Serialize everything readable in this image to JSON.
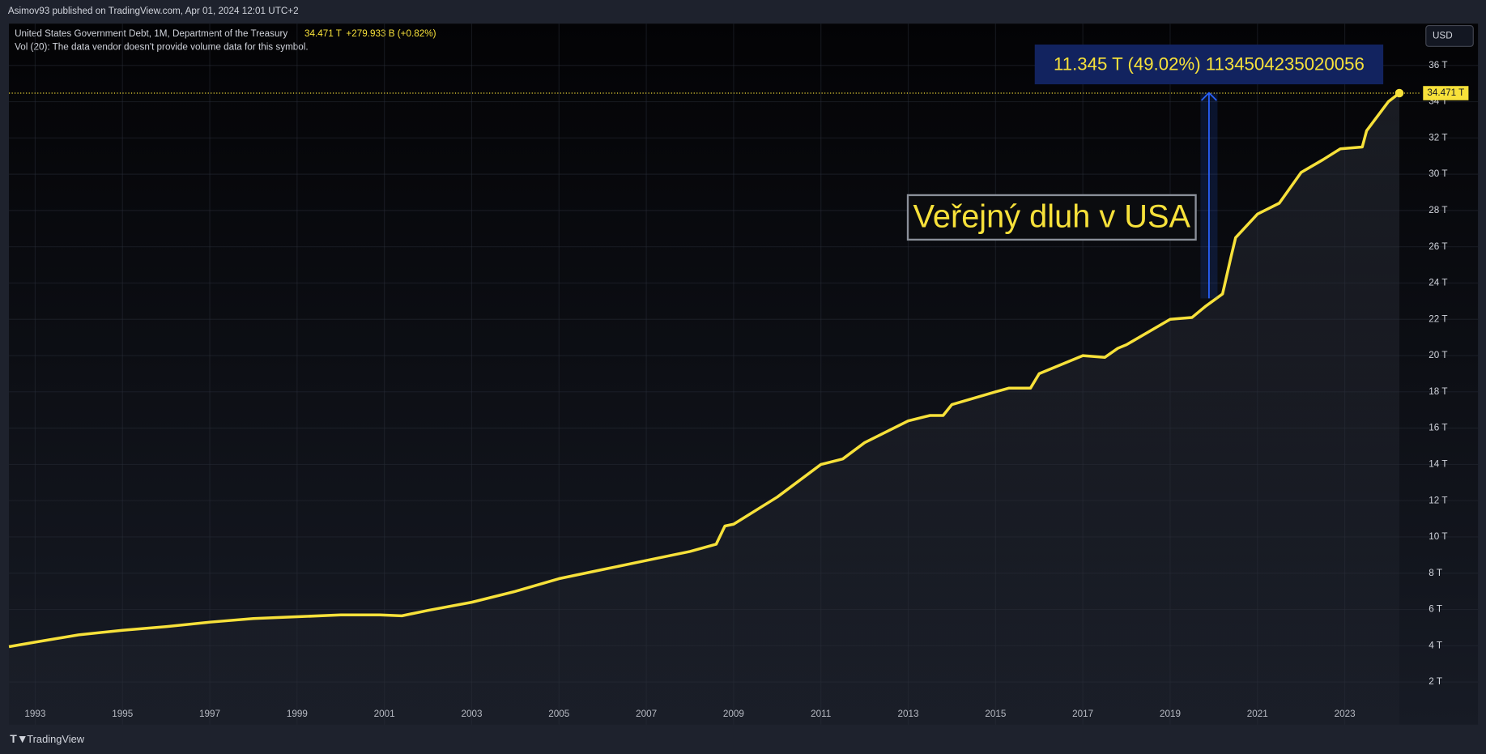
{
  "header": {
    "publisher": "Asimov93 published on TradingView.com, Apr 01, 2024 12:01 UTC+2",
    "symbol": "United States Government Debt, 1M, Department of the Treasury",
    "last": "34.471 T",
    "change": "+279.933 B (+0.82%)",
    "volume_note": "Vol (20): The data vendor doesn't provide volume data for this symbol.",
    "currency": "USD"
  },
  "footer": {
    "brand": "TradingView"
  },
  "chart_data": {
    "type": "line",
    "color": "#f7e13a",
    "grid": true,
    "x": [
      1992.4,
      1993,
      1994,
      1995,
      1996,
      1997,
      1998,
      1999,
      2000,
      2000.9,
      2001.4,
      2002,
      2003,
      2004,
      2005,
      2006,
      2007,
      2008,
      2008.6,
      2008.8,
      2009,
      2010,
      2011,
      2011.5,
      2012,
      2013,
      2013.5,
      2013.8,
      2014,
      2015,
      2015.3,
      2015.8,
      2016,
      2017,
      2017.5,
      2017.8,
      2018,
      2019,
      2019.5,
      2019.8,
      2020.2,
      2020.4,
      2020.5,
      2021,
      2021.5,
      2022,
      2022.5,
      2022.9,
      2023.4,
      2023.5,
      2024,
      2024.25
    ],
    "values": [
      3.95,
      4.2,
      4.6,
      4.85,
      5.05,
      5.3,
      5.5,
      5.6,
      5.7,
      5.7,
      5.65,
      5.95,
      6.4,
      7.0,
      7.7,
      8.2,
      8.7,
      9.2,
      9.6,
      10.6,
      10.7,
      12.2,
      14.0,
      14.3,
      15.2,
      16.4,
      16.7,
      16.7,
      17.3,
      18.0,
      18.2,
      18.2,
      19.0,
      20.0,
      19.9,
      20.4,
      20.6,
      22.0,
      22.1,
      22.7,
      23.4,
      25.5,
      26.5,
      27.8,
      28.4,
      30.1,
      30.8,
      31.4,
      31.5,
      32.4,
      34.0,
      34.471
    ],
    "value_labels": [
      null,
      null,
      null,
      null,
      null,
      null,
      null,
      null,
      null,
      null,
      null,
      null,
      null,
      null,
      null,
      null,
      null,
      null,
      null,
      null,
      null,
      null,
      null,
      null,
      null,
      null,
      null,
      null,
      null,
      null,
      null,
      null,
      null,
      null,
      null,
      null,
      null,
      null,
      null,
      null,
      null,
      null,
      null,
      null,
      null,
      null,
      null,
      null,
      null,
      null,
      null,
      "34.471 T"
    ],
    "xlim": [
      1992.4,
      2024.75
    ],
    "xticks": [
      1993,
      1995,
      1997,
      1999,
      2001,
      2003,
      2005,
      2007,
      2009,
      2011,
      2013,
      2015,
      2017,
      2019,
      2021,
      2023
    ],
    "ylim": [
      -0.35,
      38.3
    ],
    "yticks": [
      {
        "value": 2,
        "label": "2 T"
      },
      {
        "value": 4,
        "label": "4 T"
      },
      {
        "value": 6,
        "label": "6 T"
      },
      {
        "value": 8,
        "label": "8 T"
      },
      {
        "value": 10,
        "label": "10 T"
      },
      {
        "value": 12,
        "label": "12 T"
      },
      {
        "value": 14,
        "label": "14 T"
      },
      {
        "value": 16,
        "label": "16 T"
      },
      {
        "value": 18,
        "label": "18 T"
      },
      {
        "value": 20,
        "label": "20 T"
      },
      {
        "value": 22,
        "label": "22 T"
      },
      {
        "value": 24,
        "label": "24 T"
      },
      {
        "value": 26,
        "label": "26 T"
      },
      {
        "value": 28,
        "label": "28 T"
      },
      {
        "value": 30,
        "label": "30 T"
      },
      {
        "value": 32,
        "label": "32 T"
      },
      {
        "value": 34,
        "label": "34 T"
      },
      {
        "value": 36,
        "label": "36 T"
      }
    ],
    "annotations": [
      "11.345 T (49.02%) 1134504235020056",
      "Veřejný dluh v USA"
    ]
  }
}
